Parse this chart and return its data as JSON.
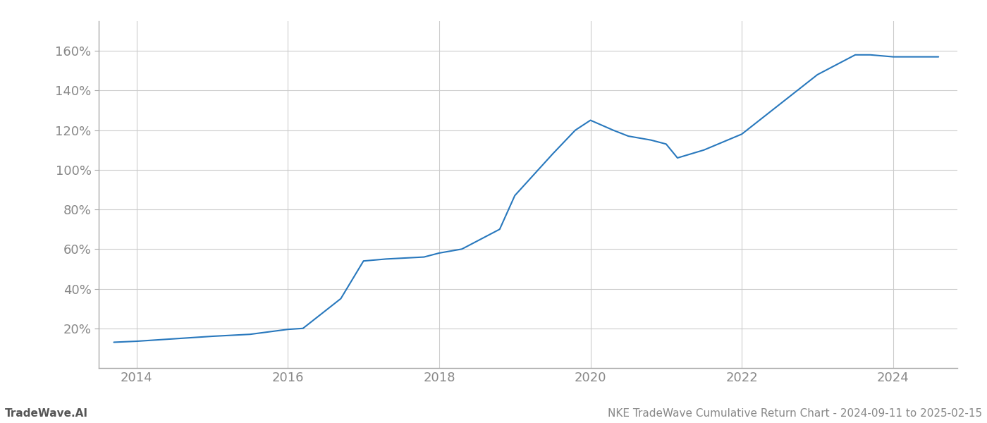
{
  "title": "NKE TradeWave Cumulative Return Chart - 2024-09-11 to 2025-02-15",
  "watermark": "TradeWave.AI",
  "line_color": "#2878bd",
  "background_color": "#ffffff",
  "grid_color": "#cccccc",
  "x_years": [
    2014,
    2016,
    2018,
    2020,
    2022,
    2024
  ],
  "y_ticks": [
    20,
    40,
    60,
    80,
    100,
    120,
    140,
    160
  ],
  "ylim": [
    0,
    175
  ],
  "xlim_start": 2013.5,
  "xlim_end": 2024.85,
  "data_points": [
    [
      2013.7,
      13
    ],
    [
      2014.0,
      13.5
    ],
    [
      2015.0,
      16
    ],
    [
      2015.5,
      17
    ],
    [
      2016.0,
      19.5
    ],
    [
      2016.2,
      20
    ],
    [
      2016.7,
      35
    ],
    [
      2017.0,
      54
    ],
    [
      2017.3,
      55
    ],
    [
      2017.8,
      56
    ],
    [
      2018.0,
      58
    ],
    [
      2018.3,
      60
    ],
    [
      2018.8,
      70
    ],
    [
      2019.0,
      87
    ],
    [
      2019.5,
      108
    ],
    [
      2019.8,
      120
    ],
    [
      2020.0,
      125
    ],
    [
      2020.3,
      120
    ],
    [
      2020.5,
      117
    ],
    [
      2020.8,
      115
    ],
    [
      2021.0,
      113
    ],
    [
      2021.15,
      106
    ],
    [
      2021.5,
      110
    ],
    [
      2022.0,
      118
    ],
    [
      2022.5,
      133
    ],
    [
      2023.0,
      148
    ],
    [
      2023.5,
      158
    ],
    [
      2023.7,
      158
    ],
    [
      2024.0,
      157
    ],
    [
      2024.6,
      157
    ]
  ]
}
